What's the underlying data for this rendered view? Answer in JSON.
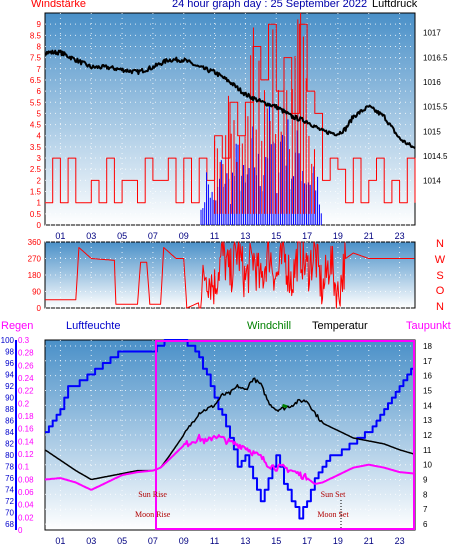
{
  "header": {
    "left_label": "Windstärke",
    "title": "24 hour graph day : 25 September 2022",
    "right_label": "Luftdruck"
  },
  "colors": {
    "panel_top": "#4a90c8",
    "panel_bottom": "#ffffff",
    "wind_speed": "#ff0000",
    "gust": "#0000ff",
    "pressure": "#000000",
    "humidity": "#0000ff",
    "dewpoint": "#ff00ff",
    "windchill": "#008000",
    "rain": "#0000ff",
    "daylight_box": "#ff00ff"
  },
  "chart_data": [
    {
      "id": "wind-pressure",
      "type": "line",
      "title": "24 hour graph day : 25 September 2022",
      "xlabel": "",
      "x_tick_labels": [
        "01",
        "03",
        "05",
        "07",
        "09",
        "11",
        "13",
        "15",
        "17",
        "19",
        "21",
        "23"
      ],
      "xlim": [
        0,
        24
      ],
      "ylabel_left": "Windstärke",
      "ylim_left": [
        0,
        9.5
      ],
      "yticks_left": [
        "0",
        "0.5",
        "1",
        "1.5",
        "2",
        "2.5",
        "3",
        "3.5",
        "4",
        "4.5",
        "5",
        "5.5",
        "6",
        "6.5",
        "7",
        "7.5",
        "8",
        "8.5",
        "9"
      ],
      "ylabel_right": "Luftdruck",
      "ylim_right": [
        1013.1,
        1017.4
      ],
      "yticks_right": [
        "1014",
        "1014.5",
        "1015",
        "1015.5",
        "1016",
        "1016.5",
        "1017",
        "1017.5"
      ],
      "grid": true,
      "series": [
        {
          "name": "Luftdruck",
          "axis": "right",
          "points": [
            [
              0,
              1016.6
            ],
            [
              1,
              1016.6
            ],
            [
              2,
              1016.45
            ],
            [
              3,
              1016.3
            ],
            [
              4,
              1016.3
            ],
            [
              5,
              1016.25
            ],
            [
              6,
              1016.2
            ],
            [
              7,
              1016.3
            ],
            [
              8,
              1016.45
            ],
            [
              9,
              1016.45
            ],
            [
              10,
              1016.3
            ],
            [
              11,
              1016.2
            ],
            [
              12,
              1016.0
            ],
            [
              13,
              1015.75
            ],
            [
              14,
              1015.6
            ],
            [
              15,
              1015.5
            ],
            [
              16,
              1015.3
            ],
            [
              17,
              1015.2
            ],
            [
              18,
              1015.0
            ],
            [
              19,
              1014.95
            ],
            [
              19.5,
              1015.05
            ],
            [
              20,
              1015.3
            ],
            [
              21,
              1015.5
            ],
            [
              22,
              1015.3
            ],
            [
              23,
              1014.85
            ],
            [
              24,
              1014.65
            ]
          ]
        },
        {
          "name": "Windstärke",
          "axis": "left",
          "points": [
            [
              0,
              1
            ],
            [
              0.5,
              3
            ],
            [
              1,
              1
            ],
            [
              1.5,
              3
            ],
            [
              2,
              1
            ],
            [
              3,
              2
            ],
            [
              3.5,
              1
            ],
            [
              4,
              3
            ],
            [
              4.5,
              1
            ],
            [
              5,
              2
            ],
            [
              6,
              1
            ],
            [
              6.5,
              3
            ],
            [
              7,
              2
            ],
            [
              8,
              3
            ],
            [
              8.5,
              1
            ],
            [
              9,
              3
            ],
            [
              9.5,
              1
            ],
            [
              10,
              3
            ],
            [
              10.5,
              2
            ],
            [
              11,
              4
            ],
            [
              11.5,
              3
            ],
            [
              12,
              5.5
            ],
            [
              12.5,
              4
            ],
            [
              13,
              5.5
            ],
            [
              13.5,
              8
            ],
            [
              14,
              6.5
            ],
            [
              14.5,
              9
            ],
            [
              15,
              6
            ],
            [
              15.5,
              7.5
            ],
            [
              16,
              5
            ],
            [
              16.5,
              9
            ],
            [
              17,
              6
            ],
            [
              17.5,
              5
            ],
            [
              18,
              2
            ],
            [
              18.5,
              3
            ],
            [
              19,
              2.5
            ],
            [
              19.5,
              1
            ],
            [
              20,
              3
            ],
            [
              20.5,
              1
            ],
            [
              21,
              2
            ],
            [
              21.5,
              3
            ],
            [
              22,
              1
            ],
            [
              22.5,
              2
            ],
            [
              23,
              1
            ],
            [
              23.5,
              3
            ],
            [
              24,
              1
            ]
          ]
        },
        {
          "name": "gust",
          "axis": "left",
          "points": [
            [
              10,
              0
            ],
            [
              10.5,
              2.5
            ],
            [
              11,
              1
            ],
            [
              11.5,
              3
            ],
            [
              12,
              2
            ],
            [
              12.5,
              3.5
            ],
            [
              13,
              2
            ],
            [
              13.5,
              4
            ],
            [
              14,
              2.5
            ],
            [
              14.5,
              5
            ],
            [
              15,
              3
            ],
            [
              15.5,
              5.5
            ],
            [
              16,
              3
            ],
            [
              16.5,
              4
            ],
            [
              17,
              2.5
            ],
            [
              17.5,
              3
            ],
            [
              18,
              0
            ]
          ]
        }
      ]
    },
    {
      "id": "wind-direction",
      "type": "line",
      "xlim": [
        0,
        24
      ],
      "ylim": [
        0,
        360
      ],
      "yticks": [
        "0",
        "90",
        "180",
        "270",
        "360"
      ],
      "direction_labels": [
        "N",
        "W",
        "S",
        "O",
        "N"
      ],
      "grid": true,
      "series": [
        {
          "name": "Windrichtung",
          "points": [
            [
              0,
              45
            ],
            [
              2,
              45
            ],
            [
              2.2,
              330
            ],
            [
              3,
              270
            ],
            [
              4.5,
              260
            ],
            [
              4.6,
              20
            ],
            [
              6,
              20
            ],
            [
              6.2,
              250
            ],
            [
              6.6,
              250
            ],
            [
              6.8,
              20
            ],
            [
              7.5,
              20
            ],
            [
              7.7,
              330
            ],
            [
              8.5,
              270
            ],
            [
              9,
              270
            ],
            [
              9.2,
              0
            ],
            [
              10,
              30
            ],
            [
              10.4,
              200
            ],
            [
              11,
              120
            ],
            [
              11.5,
              300
            ],
            [
              12,
              180
            ],
            [
              12.5,
              320
            ],
            [
              13,
              150
            ],
            [
              13.5,
              280
            ],
            [
              14,
              130
            ],
            [
              14.5,
              320
            ],
            [
              15,
              160
            ],
            [
              15.5,
              290
            ],
            [
              16,
              140
            ],
            [
              16.5,
              330
            ],
            [
              17,
              200
            ],
            [
              17.5,
              300
            ],
            [
              18,
              90
            ],
            [
              18.5,
              270
            ],
            [
              19,
              60
            ],
            [
              19.5,
              270
            ],
            [
              20,
              300
            ],
            [
              21,
              270
            ],
            [
              22,
              270
            ],
            [
              23,
              270
            ],
            [
              24,
              270
            ]
          ]
        }
      ]
    },
    {
      "id": "humidity-temperature",
      "type": "line",
      "xlim": [
        0,
        24
      ],
      "x_tick_labels": [
        "01",
        "03",
        "05",
        "07",
        "09",
        "11",
        "13",
        "15",
        "17",
        "19",
        "21",
        "23"
      ],
      "labels": {
        "rain": "Regen",
        "humidity": "Luftfeuchte",
        "windchill": "Windchill",
        "temperature": "Temperatur",
        "dewpoint": "Taupunkt"
      },
      "humidity_axis": {
        "ylim": [
          67,
          100
        ],
        "ticks": [
          "68",
          "70",
          "72",
          "74",
          "76",
          "78",
          "80",
          "82",
          "84",
          "86",
          "88",
          "90",
          "92",
          "94",
          "96",
          "98",
          "100"
        ]
      },
      "rain_axis": {
        "ylim": [
          0,
          0.3
        ],
        "ticks": [
          "0",
          "0.02",
          "0.04",
          "0.06",
          "0.08",
          "0.1",
          "0.12",
          "0.14",
          "0.16",
          "0.18",
          "0.2",
          "0.22",
          "0.24",
          "0.26",
          "0.28",
          "0.3"
        ]
      },
      "temp_axis": {
        "ylim": [
          5.6,
          18.4
        ],
        "ticks": [
          "6",
          "7",
          "8",
          "9",
          "10",
          "11",
          "12",
          "13",
          "14",
          "15",
          "16",
          "17",
          "18"
        ]
      },
      "annotations": [
        {
          "text": "Sun Rise",
          "x": 7.5
        },
        {
          "text": "Moon Rise",
          "x": 7.5
        },
        {
          "text": "Sun Set",
          "x": 19.2
        },
        {
          "text": "Moon Set",
          "x": 19.2
        }
      ],
      "daylight": [
        7.2,
        24
      ],
      "grid": true,
      "series": [
        {
          "name": "Luftfeuchte",
          "axis": "humidity",
          "points": [
            [
              0,
              84
            ],
            [
              1,
              88
            ],
            [
              1.5,
              92
            ],
            [
              2,
              92
            ],
            [
              3,
              94
            ],
            [
              4,
              96
            ],
            [
              5,
              98
            ],
            [
              6,
              98
            ],
            [
              7,
              98
            ],
            [
              7.5,
              99
            ],
            [
              8,
              100
            ],
            [
              9,
              100
            ],
            [
              10,
              97
            ],
            [
              11,
              90
            ],
            [
              12,
              83
            ],
            [
              12.5,
              78
            ],
            [
              13,
              80
            ],
            [
              14,
              72
            ],
            [
              14.5,
              76
            ],
            [
              15,
              80
            ],
            [
              15.5,
              75
            ],
            [
              16,
              72
            ],
            [
              16.5,
              69
            ],
            [
              17,
              72
            ],
            [
              17.5,
              76
            ],
            [
              18,
              78
            ],
            [
              18.5,
              80
            ],
            [
              19,
              80
            ],
            [
              20,
              82
            ],
            [
              21,
              84
            ],
            [
              22,
              88
            ],
            [
              23,
              92
            ],
            [
              23.5,
              94
            ],
            [
              24,
              95
            ]
          ]
        },
        {
          "name": "Temperatur",
          "axis": "temp",
          "points": [
            [
              0,
              11
            ],
            [
              1,
              10.3
            ],
            [
              2,
              9.6
            ],
            [
              3,
              9
            ],
            [
              4,
              9.2
            ],
            [
              5,
              9.4
            ],
            [
              6,
              9.6
            ],
            [
              7,
              9.6
            ],
            [
              7.5,
              9.8
            ],
            [
              8,
              10.5
            ],
            [
              9,
              12
            ],
            [
              10,
              13.5
            ],
            [
              11,
              14
            ],
            [
              11.5,
              14.7
            ],
            [
              12,
              14.8
            ],
            [
              12.5,
              15.3
            ],
            [
              13,
              15
            ],
            [
              13.5,
              15.8
            ],
            [
              14,
              15.4
            ],
            [
              14.5,
              14.2
            ],
            [
              15,
              13.7
            ],
            [
              15.5,
              13.8
            ],
            [
              16,
              14
            ],
            [
              16.5,
              14.3
            ],
            [
              17,
              14.3
            ],
            [
              17.5,
              13.5
            ],
            [
              18,
              12.8
            ],
            [
              19,
              12.3
            ],
            [
              20,
              11.8
            ],
            [
              21,
              11.6
            ],
            [
              22,
              11.4
            ],
            [
              23,
              11
            ],
            [
              24,
              10.7
            ]
          ]
        },
        {
          "name": "Taupunkt",
          "axis": "temp",
          "points": [
            [
              0,
              9
            ],
            [
              1,
              9.1
            ],
            [
              2,
              8.8
            ],
            [
              3,
              8.3
            ],
            [
              4,
              8.8
            ],
            [
              5,
              9.3
            ],
            [
              6,
              9.5
            ],
            [
              7,
              9.6
            ],
            [
              7.5,
              9.8
            ],
            [
              8,
              10.3
            ],
            [
              9,
              11.3
            ],
            [
              10,
              11.8
            ],
            [
              10.5,
              11.5
            ],
            [
              11,
              12
            ],
            [
              12,
              11.5
            ],
            [
              13,
              11.2
            ],
            [
              13.5,
              10.8
            ],
            [
              14,
              10.5
            ],
            [
              14.5,
              10
            ],
            [
              15,
              9.8
            ],
            [
              15.5,
              9.8
            ],
            [
              16,
              9.6
            ],
            [
              17,
              9.1
            ],
            [
              17.5,
              8.7
            ],
            [
              18,
              8.8
            ],
            [
              19,
              9.3
            ],
            [
              20,
              9.8
            ],
            [
              21,
              10
            ],
            [
              22,
              9.8
            ],
            [
              23,
              9.5
            ],
            [
              24,
              9.4
            ]
          ]
        },
        {
          "name": "Windchill",
          "axis": "temp",
          "points": [
            [
              15.4,
              14
            ],
            [
              15.7,
              13.9
            ]
          ]
        }
      ]
    }
  ]
}
